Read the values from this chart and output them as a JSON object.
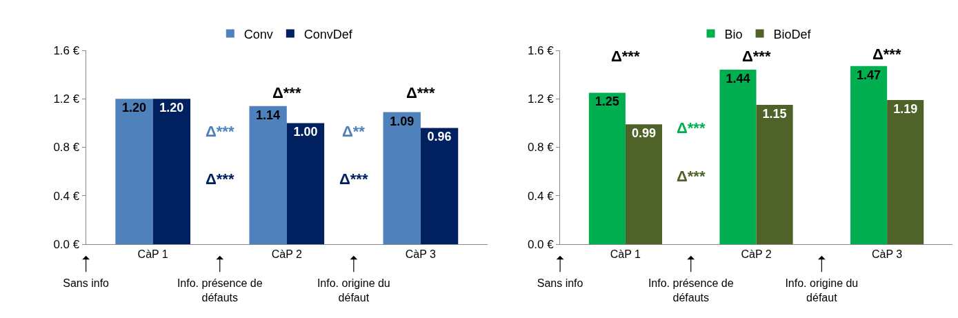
{
  "chart_data": [
    {
      "type": "bar",
      "categories": [
        "Sans info",
        "CàP 1",
        "Info. présence de défauts",
        "CàP 2",
        "Info. origine du défaut",
        "CàP 3"
      ],
      "series": [
        {
          "name": "Conv",
          "color": "#4f81bd",
          "values": [
            null,
            1.2,
            null,
            1.14,
            null,
            1.09
          ],
          "value_labels": [
            null,
            "1.20",
            null,
            "1.14",
            null,
            "1.09"
          ]
        },
        {
          "name": "ConvDef",
          "color": "#002060",
          "values": [
            null,
            1.2,
            null,
            1.0,
            null,
            0.96
          ],
          "value_labels": [
            null,
            "1.20",
            null,
            "1.00",
            null,
            "0.96"
          ]
        }
      ],
      "ylim": [
        0,
        1.6
      ],
      "yticks": [
        {
          "value": 0,
          "label": "0.0 €"
        },
        {
          "value": 0.4,
          "label": "0.4 €"
        },
        {
          "value": 0.8,
          "label": "0.8 €"
        },
        {
          "value": 1.2,
          "label": "1.2 €"
        },
        {
          "value": 1.6,
          "label": "1.6 €"
        }
      ],
      "legend": "top",
      "grid": false,
      "annotations": [
        "Δ***",
        "Δ***",
        "Δ***",
        "Δ**",
        "Δ***",
        "Δ***"
      ]
    },
    {
      "type": "bar",
      "categories": [
        "Sans info",
        "CàP 1",
        "Info. présence de défauts",
        "CàP 2",
        "Info. origine du défaut",
        "CàP 3"
      ],
      "series": [
        {
          "name": "Bio",
          "color": "#00b050",
          "values": [
            null,
            1.25,
            null,
            1.44,
            null,
            1.47
          ],
          "value_labels": [
            null,
            "1.25",
            null,
            "1.44",
            null,
            "1.47"
          ]
        },
        {
          "name": "BioDef",
          "color": "#4f6228",
          "values": [
            null,
            0.99,
            null,
            1.15,
            null,
            1.19
          ],
          "value_labels": [
            null,
            "0.99",
            null,
            "1.15",
            null,
            "1.19"
          ]
        }
      ],
      "ylim": [
        0,
        1.6
      ],
      "yticks": [
        {
          "value": 0,
          "label": "0.0 €"
        },
        {
          "value": 0.4,
          "label": "0.4 €"
        },
        {
          "value": 0.8,
          "label": "0.8 €"
        },
        {
          "value": 1.2,
          "label": "1.2 €"
        },
        {
          "value": 1.6,
          "label": "1.6 €"
        }
      ],
      "legend": "top",
      "grid": false,
      "annotations": [
        "Δ***",
        "Δ***",
        "Δ***",
        "Δ***",
        "Δ***"
      ]
    }
  ]
}
